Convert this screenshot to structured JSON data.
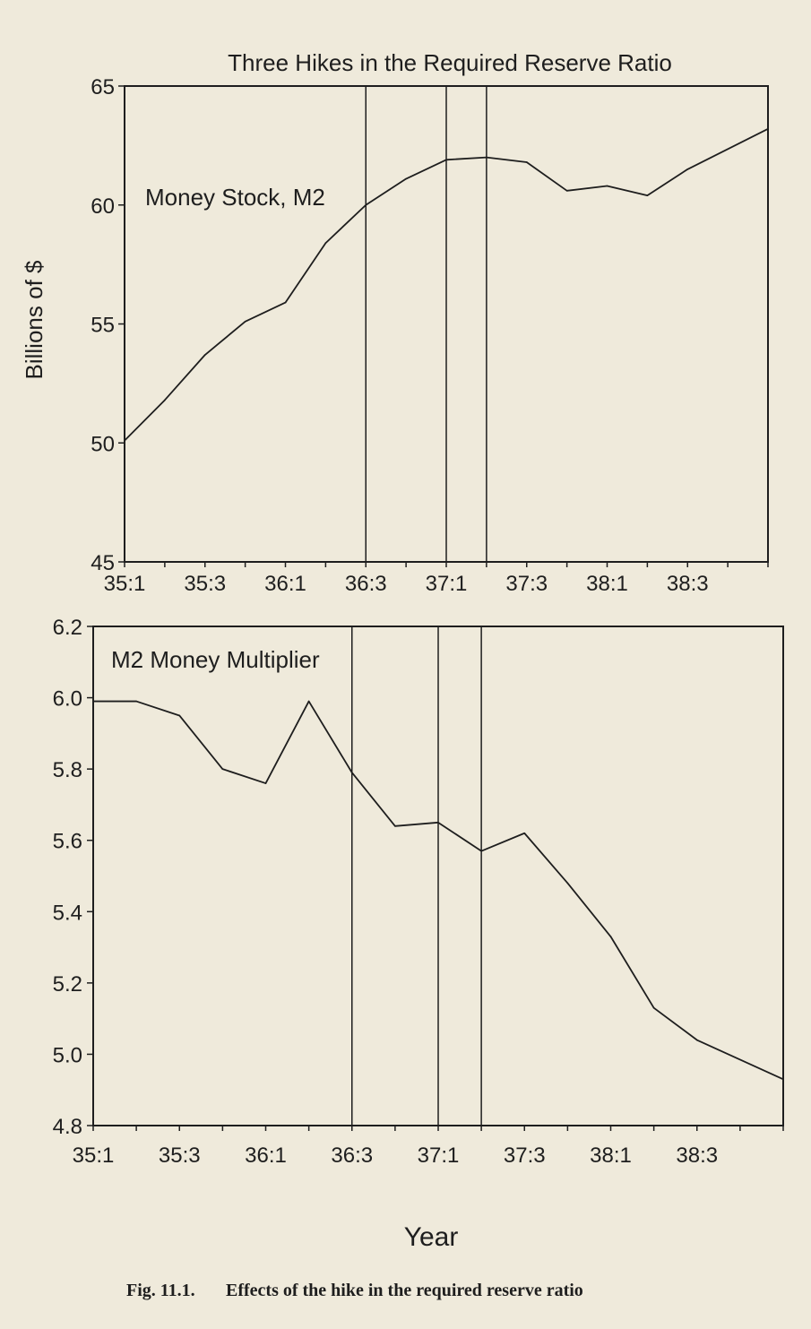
{
  "caption": {
    "fig_number": "Fig. 11.1.",
    "text": "Effects of the hike in the required reserve ratio"
  },
  "chart_data": [
    {
      "type": "line",
      "title": "Three Hikes in the Required Reserve Ratio",
      "series_label": "Money Stock, M2",
      "ylabel": "Billions of $",
      "xlabel": "",
      "ylim": [
        45,
        65
      ],
      "yticks": [
        45,
        50,
        55,
        60,
        65
      ],
      "xtick_labels": [
        "35:1",
        "35:3",
        "36:1",
        "36:3",
        "37:1",
        "37:3",
        "38:1",
        "38:3"
      ],
      "x": [
        "35:1",
        "35:2",
        "35:3",
        "35:4",
        "36:1",
        "36:2",
        "36:3",
        "36:4",
        "37:1",
        "37:2",
        "37:3",
        "37:4",
        "38:1",
        "38:2",
        "38:3",
        "38:4"
      ],
      "series": [
        {
          "values": [
            50.1,
            51.8,
            53.7,
            55.1,
            55.9,
            58.4,
            60.0,
            61.1,
            61.9,
            62.0,
            61.8,
            60.6,
            60.8,
            60.4,
            61.5,
            63.2
          ]
        }
      ],
      "vertical_lines": [
        "36:3",
        "37:1",
        "37:2"
      ],
      "grid": false
    },
    {
      "type": "line",
      "title": "",
      "series_label": "M2 Money Multiplier",
      "ylabel": "",
      "xlabel": "Year",
      "ylim": [
        4.8,
        6.2
      ],
      "yticks": [
        "4.8",
        "5.0",
        "5.2",
        "5.4",
        "5.6",
        "5.8",
        "6.0",
        "6.2"
      ],
      "xtick_labels": [
        "35:1",
        "35:3",
        "36:1",
        "36:3",
        "37:1",
        "37:3",
        "38:1",
        "38:3"
      ],
      "x": [
        "35:1",
        "35:2",
        "35:3",
        "35:4",
        "36:1",
        "36:2",
        "36:3",
        "36:4",
        "37:1",
        "37:2",
        "37:3",
        "37:4",
        "38:1",
        "38:2",
        "38:3",
        "38:4"
      ],
      "series": [
        {
          "values": [
            5.99,
            5.99,
            5.95,
            5.8,
            5.76,
            5.99,
            5.79,
            5.64,
            5.65,
            5.57,
            5.62,
            5.48,
            5.33,
            5.13,
            5.04,
            4.93
          ]
        }
      ],
      "vertical_lines": [
        "36:3",
        "37:1",
        "37:2"
      ],
      "grid": false
    }
  ]
}
